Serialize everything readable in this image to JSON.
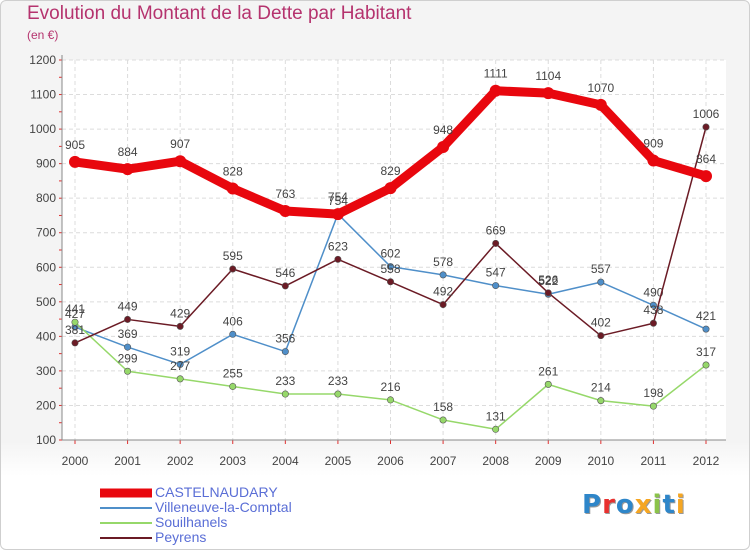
{
  "title": "Evolution du Montant de la Dette par Habitant",
  "subtitle": "(en €)",
  "logo_text": "Proxiti",
  "logo_colors": [
    "#2e86c9",
    "#e8312f",
    "#2e86c9",
    "#f5a623",
    "#8bc34a",
    "#2e86c9",
    "#f5a623"
  ],
  "chart_data": {
    "type": "line",
    "title": "Evolution du Montant de la Dette par Habitant",
    "ylabel": "(en €)",
    "xlabel": "",
    "ylim": [
      100,
      1200
    ],
    "yticks": [
      100,
      200,
      300,
      400,
      500,
      600,
      700,
      800,
      900,
      1000,
      1100,
      1200
    ],
    "grid": true,
    "legend": "bottom-left",
    "categories": [
      "2000",
      "2001",
      "2002",
      "2003",
      "2004",
      "2005",
      "2006",
      "2007",
      "2008",
      "2009",
      "2010",
      "2011",
      "2012"
    ],
    "series": [
      {
        "name": "CASTELNAUDARY",
        "color": "#e8070e",
        "values": [
          905,
          884,
          907,
          828,
          763,
          754,
          829,
          948,
          1111,
          1104,
          1070,
          909,
          864
        ]
      },
      {
        "name": "Villeneuve-la-Comptal",
        "color": "#4f8fc9",
        "values": [
          427,
          369,
          319,
          406,
          356,
          754,
          602,
          578,
          547,
          522,
          557,
          490,
          421
        ]
      },
      {
        "name": "Souilhanels",
        "color": "#96d86a",
        "values": [
          441,
          299,
          277,
          255,
          233,
          233,
          216,
          158,
          131,
          261,
          214,
          198,
          317
        ]
      },
      {
        "name": "Peyrens",
        "color": "#6b1b25",
        "values": [
          381,
          449,
          429,
          595,
          546,
          623,
          558,
          492,
          669,
          526,
          402,
          438,
          1006
        ]
      }
    ]
  }
}
